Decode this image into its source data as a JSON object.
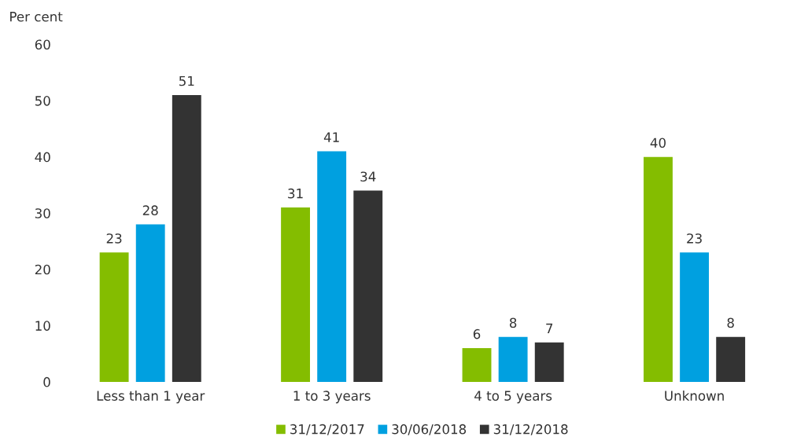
{
  "chart_data": {
    "type": "bar",
    "ylabel": "Per cent",
    "categories": [
      "Less than 1 year",
      "1 to 3 years",
      "4 to 5 years",
      "Unknown"
    ],
    "series": [
      {
        "name": "31/12/2017",
        "color": "#84bd00",
        "values": [
          23,
          31,
          6,
          40
        ]
      },
      {
        "name": "30/06/2018",
        "color": "#00a0e0",
        "values": [
          28,
          41,
          8,
          23
        ]
      },
      {
        "name": "31/12/2018",
        "color": "#333333",
        "values": [
          51,
          34,
          7,
          8
        ]
      }
    ],
    "ylim": [
      0,
      60
    ],
    "yticks": [
      0,
      10,
      20,
      30,
      40,
      50,
      60
    ],
    "grid": false,
    "legend": "bottom",
    "data_labels": true
  }
}
